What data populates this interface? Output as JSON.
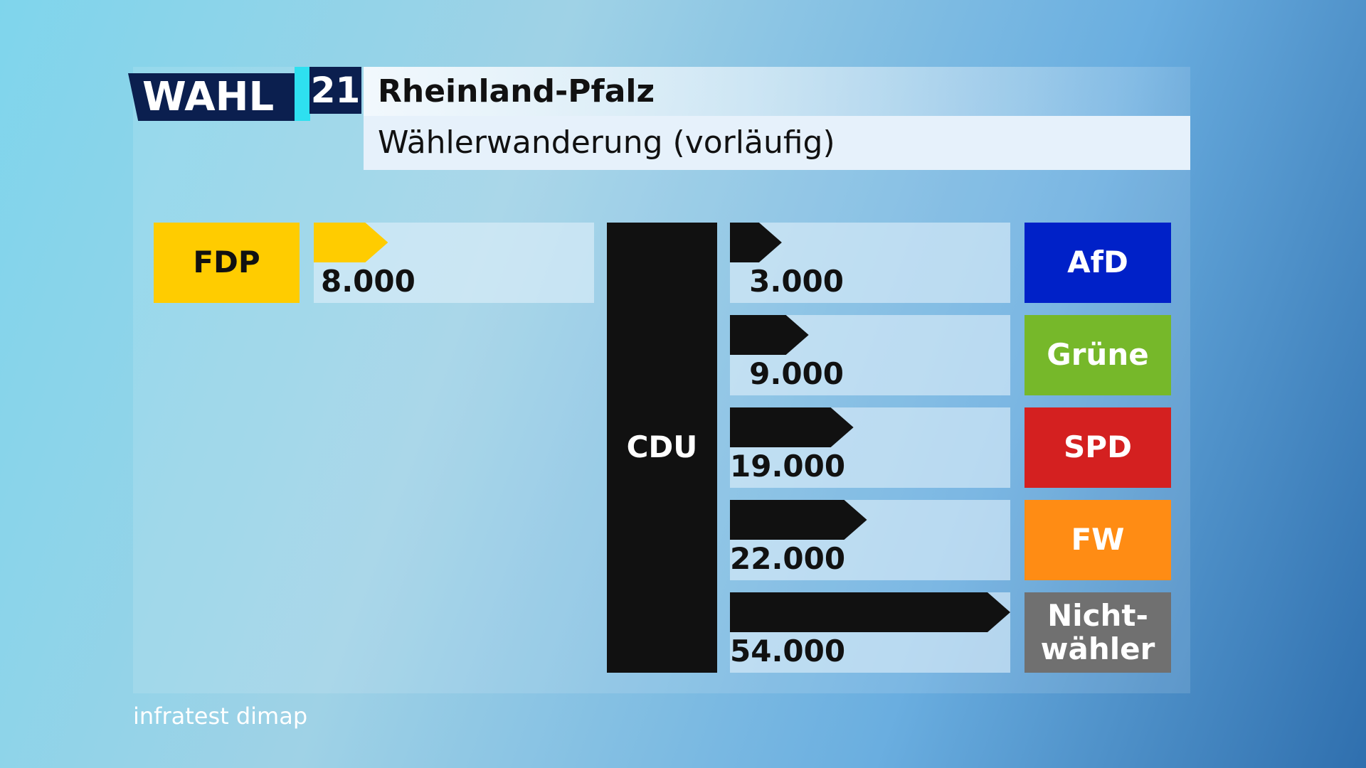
{
  "chart_data": {
    "type": "bar",
    "logo": "WAHL",
    "logo_number": "21",
    "title": "Rheinland-Pfalz",
    "subtitle": "Wählerwanderung (vorläufig)",
    "center": {
      "name": "CDU",
      "color": "#111111"
    },
    "inflows": {
      "categories": [
        "FDP"
      ],
      "colors": [
        "#ffcc00"
      ],
      "values": [
        8000
      ],
      "value_labels": [
        "8.000"
      ]
    },
    "outflows": {
      "categories": [
        "AfD",
        "Grüne",
        "SPD",
        "FW",
        "Nicht-\nwähler"
      ],
      "colors": [
        "#0021c8",
        "#76b82a",
        "#d42020",
        "#ff8c14",
        "#707070"
      ],
      "values": [
        3000,
        9000,
        19000,
        22000,
        54000
      ],
      "value_labels": [
        "3.000",
        "9.000",
        "19.000",
        "22.000",
        "54.000"
      ]
    },
    "source": "infratest dimap"
  }
}
